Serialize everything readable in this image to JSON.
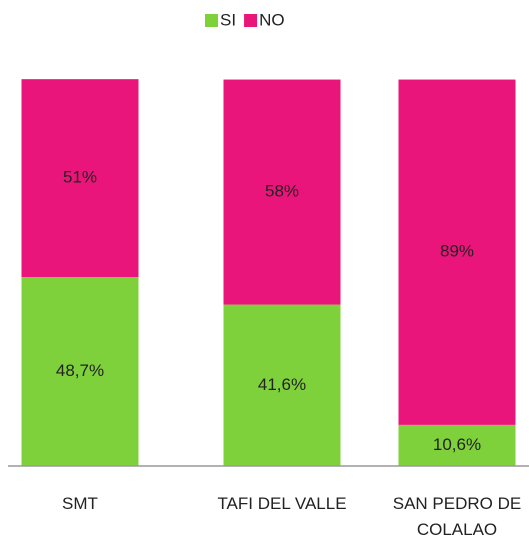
{
  "chart_data": {
    "type": "stacked_bar",
    "categories": [
      "SMT",
      "TAFI DEL VALLE",
      "SAN PEDRO DE COLALAO"
    ],
    "series": [
      {
        "name": "SI",
        "color": "#7fd13b",
        "values": [
          48.7,
          41.6,
          10.6
        ],
        "value_labels": [
          "48,7%",
          "41,6%",
          "10,6%"
        ]
      },
      {
        "name": "NO",
        "color": "#ea157a",
        "values": [
          51,
          58,
          89
        ],
        "value_labels": [
          "51%",
          "58%",
          "89%"
        ]
      }
    ],
    "ylim": [
      0,
      100
    ],
    "legend": "top"
  }
}
